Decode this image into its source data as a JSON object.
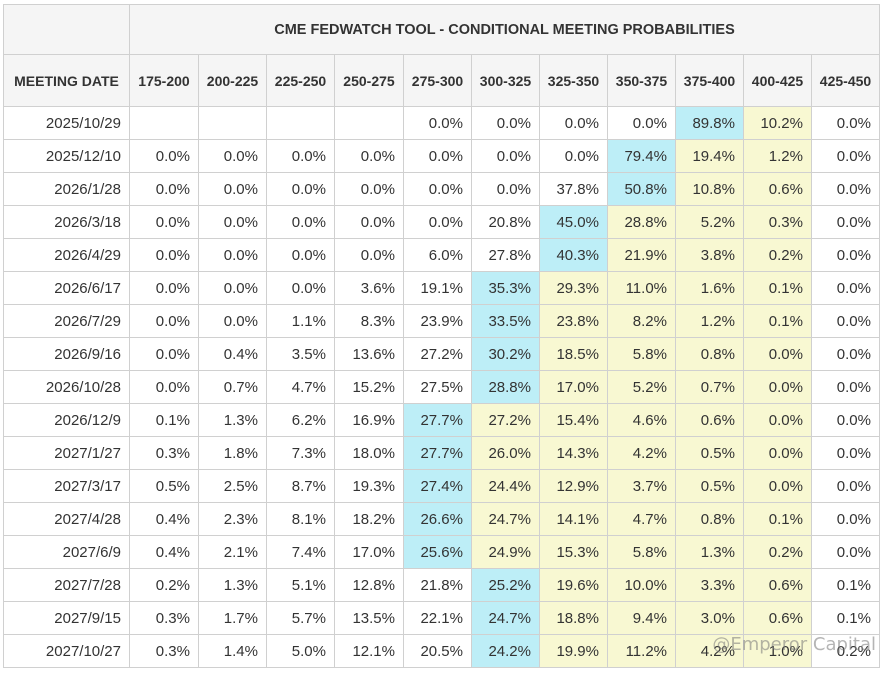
{
  "title": "CME FEDWATCH TOOL - CONDITIONAL MEETING PROBABILITIES",
  "date_header": "MEETING DATE",
  "watermark": "@Emperor Capital",
  "colors": {
    "max": "#bdeef7",
    "highlight": "#f8f8d2",
    "header_bg": "#f5f5f5",
    "border": "#d0d0d0"
  },
  "chart_data": {
    "type": "table",
    "title": "CME FEDWATCH TOOL - CONDITIONAL MEETING PROBABILITIES",
    "columns": [
      "175-200",
      "200-225",
      "225-250",
      "250-275",
      "275-300",
      "300-325",
      "325-350",
      "350-375",
      "375-400",
      "400-425",
      "425-450"
    ],
    "rows": [
      {
        "date": "2025/10/29",
        "values": [
          "",
          "",
          "",
          "",
          "0.0%",
          "0.0%",
          "0.0%",
          "0.0%",
          "89.8%",
          "10.2%",
          "0.0%"
        ],
        "max_col": 8,
        "hi_cols": [
          9
        ]
      },
      {
        "date": "2025/12/10",
        "values": [
          "0.0%",
          "0.0%",
          "0.0%",
          "0.0%",
          "0.0%",
          "0.0%",
          "0.0%",
          "79.4%",
          "19.4%",
          "1.2%",
          "0.0%"
        ],
        "max_col": 7,
        "hi_cols": [
          8,
          9
        ]
      },
      {
        "date": "2026/1/28",
        "values": [
          "0.0%",
          "0.0%",
          "0.0%",
          "0.0%",
          "0.0%",
          "0.0%",
          "37.8%",
          "50.8%",
          "10.8%",
          "0.6%",
          "0.0%"
        ],
        "max_col": 7,
        "hi_cols": [
          8,
          9
        ]
      },
      {
        "date": "2026/3/18",
        "values": [
          "0.0%",
          "0.0%",
          "0.0%",
          "0.0%",
          "0.0%",
          "20.8%",
          "45.0%",
          "28.8%",
          "5.2%",
          "0.3%",
          "0.0%"
        ],
        "max_col": 6,
        "hi_cols": [
          7,
          8,
          9
        ]
      },
      {
        "date": "2026/4/29",
        "values": [
          "0.0%",
          "0.0%",
          "0.0%",
          "0.0%",
          "6.0%",
          "27.8%",
          "40.3%",
          "21.9%",
          "3.8%",
          "0.2%",
          "0.0%"
        ],
        "max_col": 6,
        "hi_cols": [
          7,
          8,
          9
        ]
      },
      {
        "date": "2026/6/17",
        "values": [
          "0.0%",
          "0.0%",
          "0.0%",
          "3.6%",
          "19.1%",
          "35.3%",
          "29.3%",
          "11.0%",
          "1.6%",
          "0.1%",
          "0.0%"
        ],
        "max_col": 5,
        "hi_cols": [
          6,
          7,
          8,
          9
        ]
      },
      {
        "date": "2026/7/29",
        "values": [
          "0.0%",
          "0.0%",
          "1.1%",
          "8.3%",
          "23.9%",
          "33.5%",
          "23.8%",
          "8.2%",
          "1.2%",
          "0.1%",
          "0.0%"
        ],
        "max_col": 5,
        "hi_cols": [
          6,
          7,
          8,
          9
        ]
      },
      {
        "date": "2026/9/16",
        "values": [
          "0.0%",
          "0.4%",
          "3.5%",
          "13.6%",
          "27.2%",
          "30.2%",
          "18.5%",
          "5.8%",
          "0.8%",
          "0.0%",
          "0.0%"
        ],
        "max_col": 5,
        "hi_cols": [
          6,
          7,
          8,
          9
        ]
      },
      {
        "date": "2026/10/28",
        "values": [
          "0.0%",
          "0.7%",
          "4.7%",
          "15.2%",
          "27.5%",
          "28.8%",
          "17.0%",
          "5.2%",
          "0.7%",
          "0.0%",
          "0.0%"
        ],
        "max_col": 5,
        "hi_cols": [
          6,
          7,
          8,
          9
        ]
      },
      {
        "date": "2026/12/9",
        "values": [
          "0.1%",
          "1.3%",
          "6.2%",
          "16.9%",
          "27.7%",
          "27.2%",
          "15.4%",
          "4.6%",
          "0.6%",
          "0.0%",
          "0.0%"
        ],
        "max_col": 4,
        "hi_cols": [
          5,
          6,
          7,
          8,
          9
        ]
      },
      {
        "date": "2027/1/27",
        "values": [
          "0.3%",
          "1.8%",
          "7.3%",
          "18.0%",
          "27.7%",
          "26.0%",
          "14.3%",
          "4.2%",
          "0.5%",
          "0.0%",
          "0.0%"
        ],
        "max_col": 4,
        "hi_cols": [
          5,
          6,
          7,
          8,
          9
        ]
      },
      {
        "date": "2027/3/17",
        "values": [
          "0.5%",
          "2.5%",
          "8.7%",
          "19.3%",
          "27.4%",
          "24.4%",
          "12.9%",
          "3.7%",
          "0.5%",
          "0.0%",
          "0.0%"
        ],
        "max_col": 4,
        "hi_cols": [
          5,
          6,
          7,
          8,
          9
        ]
      },
      {
        "date": "2027/4/28",
        "values": [
          "0.4%",
          "2.3%",
          "8.1%",
          "18.2%",
          "26.6%",
          "24.7%",
          "14.1%",
          "4.7%",
          "0.8%",
          "0.1%",
          "0.0%"
        ],
        "max_col": 4,
        "hi_cols": [
          5,
          6,
          7,
          8,
          9
        ]
      },
      {
        "date": "2027/6/9",
        "values": [
          "0.4%",
          "2.1%",
          "7.4%",
          "17.0%",
          "25.6%",
          "24.9%",
          "15.3%",
          "5.8%",
          "1.3%",
          "0.2%",
          "0.0%"
        ],
        "max_col": 4,
        "hi_cols": [
          5,
          6,
          7,
          8,
          9
        ]
      },
      {
        "date": "2027/7/28",
        "values": [
          "0.2%",
          "1.3%",
          "5.1%",
          "12.8%",
          "21.8%",
          "25.2%",
          "19.6%",
          "10.0%",
          "3.3%",
          "0.6%",
          "0.1%"
        ],
        "max_col": 5,
        "hi_cols": [
          6,
          7,
          8,
          9
        ]
      },
      {
        "date": "2027/9/15",
        "values": [
          "0.3%",
          "1.7%",
          "5.7%",
          "13.5%",
          "22.1%",
          "24.7%",
          "18.8%",
          "9.4%",
          "3.0%",
          "0.6%",
          "0.1%"
        ],
        "max_col": 5,
        "hi_cols": [
          6,
          7,
          8,
          9
        ]
      },
      {
        "date": "2027/10/27",
        "values": [
          "0.3%",
          "1.4%",
          "5.0%",
          "12.1%",
          "20.5%",
          "24.2%",
          "19.9%",
          "11.2%",
          "4.2%",
          "1.0%",
          "0.2%"
        ],
        "max_col": 5,
        "hi_cols": [
          6,
          7,
          8,
          9
        ]
      }
    ]
  }
}
